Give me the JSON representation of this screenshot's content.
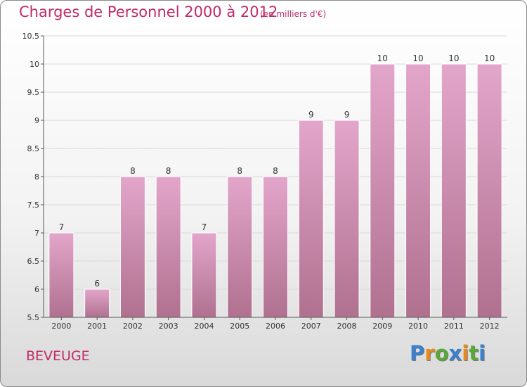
{
  "header": {
    "title": "Charges de Personnel 2000 à 2012",
    "subtitle": "(en milliers d'€)"
  },
  "footer": {
    "place": "BEVEUGE",
    "brand": "Proxiti"
  },
  "colors": {
    "bar_top": "#e3a6cb",
    "bar_bottom": "#b0718f",
    "text_accent": "#c02a6a"
  },
  "chart_data": {
    "type": "bar",
    "categories": [
      "2000",
      "2001",
      "2002",
      "2003",
      "2004",
      "2005",
      "2006",
      "2007",
      "2008",
      "2009",
      "2010",
      "2011",
      "2012"
    ],
    "values": [
      7,
      6,
      8,
      8,
      7,
      8,
      8,
      9,
      9,
      10,
      10,
      10,
      10
    ],
    "data_labels": [
      "7",
      "6",
      "8",
      "8",
      "7",
      "8",
      "8",
      "9",
      "9",
      "10",
      "10",
      "10",
      "10"
    ],
    "yticks": [
      "5.5",
      "6",
      "6.5",
      "7",
      "7.5",
      "8",
      "8.5",
      "9",
      "9.5",
      "10",
      "10.5"
    ],
    "ylim": [
      5.5,
      10.5
    ],
    "grid": true
  }
}
